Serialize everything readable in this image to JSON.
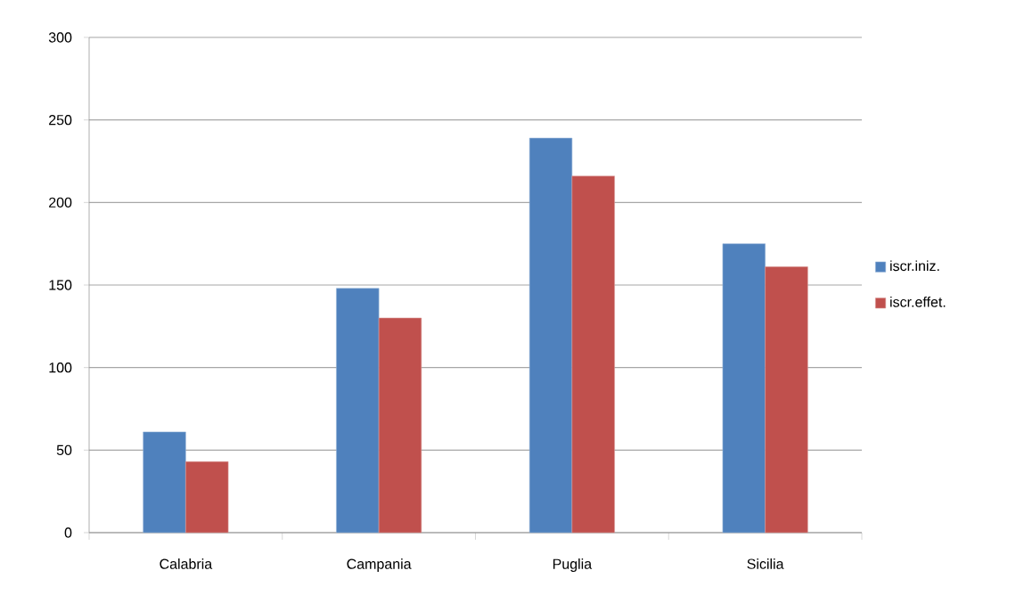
{
  "chart_data": {
    "type": "bar",
    "categories": [
      "Calabria",
      "Campania",
      "Puglia",
      "Sicilia"
    ],
    "series": [
      {
        "name": "iscr.iniz.",
        "color": "#4f81bd",
        "values": [
          61,
          148,
          239,
          175
        ]
      },
      {
        "name": "iscr.effet.",
        "color": "#c0504d",
        "values": [
          43,
          130,
          216,
          161
        ]
      }
    ],
    "ylim": [
      0,
      300
    ],
    "yticks": [
      0,
      50,
      100,
      150,
      200,
      250,
      300
    ],
    "grid": "y",
    "legend": "right"
  }
}
